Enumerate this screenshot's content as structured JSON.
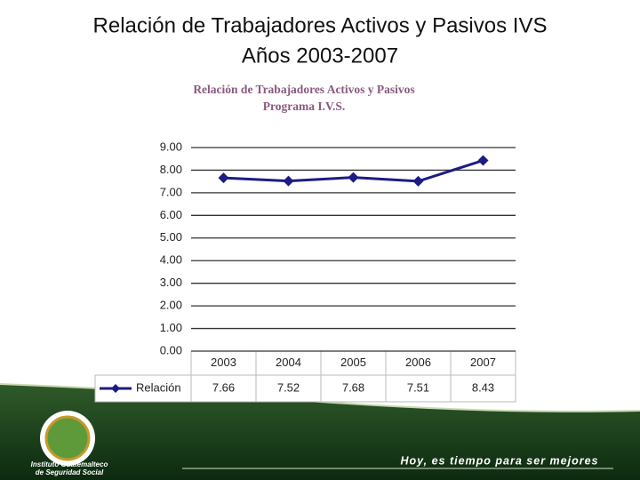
{
  "slide": {
    "title": [
      "Relación de Trabajadores Activos y Pasivos IVS",
      "Años 2003-2007"
    ],
    "institution": [
      "Instituto Guatemalteco",
      "de Seguridad Social"
    ],
    "slogan": "Hoy, es tiempo para ser mejores"
  },
  "chart_data": {
    "type": "line",
    "title": [
      "Relación de Trabajadores Activos y Pasivos",
      "Programa  I.V.S."
    ],
    "categories": [
      "2003",
      "2004",
      "2005",
      "2006",
      "2007"
    ],
    "series": [
      {
        "name": "Relación",
        "color": "#1c1c84",
        "values": [
          7.66,
          7.52,
          7.68,
          7.51,
          8.43
        ]
      }
    ],
    "ylim": [
      0,
      9
    ],
    "yticks": [
      {
        "value": 0,
        "label": "0.00"
      },
      {
        "value": 1,
        "label": "1.00"
      },
      {
        "value": 2,
        "label": "2.00"
      },
      {
        "value": 3,
        "label": "3.00"
      },
      {
        "value": 4,
        "label": "4.00"
      },
      {
        "value": 5,
        "label": "5.00"
      },
      {
        "value": 6,
        "label": "6.00"
      },
      {
        "value": 7,
        "label": "7.00"
      },
      {
        "value": 8,
        "label": "8.00"
      },
      {
        "value": 9,
        "label": "9.00"
      }
    ],
    "grid": true,
    "data_table": true
  }
}
